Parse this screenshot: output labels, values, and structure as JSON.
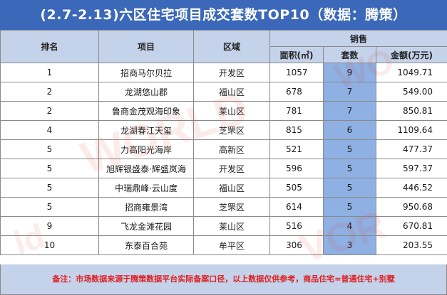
{
  "title": "(2.7-2.13)六区住宅项目成交套数TOP10（数据：腾策）",
  "table": {
    "headers": {
      "rank": "排名",
      "project": "项目",
      "district": "区域",
      "sales_group": "销售",
      "area": "面积(㎡)",
      "units": "套数",
      "amount": "金额(万元)"
    },
    "rows": [
      {
        "rank": "1",
        "project": "招商马尔贝拉",
        "district": "开发区",
        "area": "1057",
        "units": "9",
        "amount": "1049.71"
      },
      {
        "rank": "2",
        "project": "龙湖悠山郡",
        "district": "福山区",
        "area": "678",
        "units": "7",
        "amount": "549.00"
      },
      {
        "rank": "2",
        "project": "鲁商金茂观海印象",
        "district": "莱山区",
        "area": "781",
        "units": "7",
        "amount": "850.81"
      },
      {
        "rank": "4",
        "project": "龙湖春江天玺",
        "district": "芝罘区",
        "area": "815",
        "units": "6",
        "amount": "1109.64"
      },
      {
        "rank": "5",
        "project": "力高阳光海岸",
        "district": "高新区",
        "area": "521",
        "units": "5",
        "amount": "477.37"
      },
      {
        "rank": "5",
        "project": "旭辉银盛泰·辉盛岚海",
        "district": "开发区",
        "area": "596",
        "units": "5",
        "amount": "597.37"
      },
      {
        "rank": "5",
        "project": "中瑞鼎峰·云山度",
        "district": "福山区",
        "area": "505",
        "units": "5",
        "amount": "446.52"
      },
      {
        "rank": "5",
        "project": "招商雍景湾",
        "district": "芝罘区",
        "area": "614",
        "units": "5",
        "amount": "950.68"
      },
      {
        "rank": "9",
        "project": "飞龙金滩花园",
        "district": "莱山区",
        "area": "516",
        "units": "4",
        "amount": "670.81"
      },
      {
        "rank": "10",
        "project": "东泰百合苑",
        "district": "牟平区",
        "area": "306",
        "units": "3",
        "amount": "203.55"
      }
    ]
  },
  "footer": "备注：市场数据来源于腾策数据平台实际备案口径，以上数据仅供参考，商品住宅=普通住宅+别墅",
  "watermarks": [
    "WORLD",
    "WO",
    "ld",
    "VOR"
  ],
  "colors": {
    "title_bg": "#3b68b8",
    "header_bg": "#c4d2ea",
    "units_col_bg": "#8fb0e2",
    "footer_text": "#e02020"
  }
}
